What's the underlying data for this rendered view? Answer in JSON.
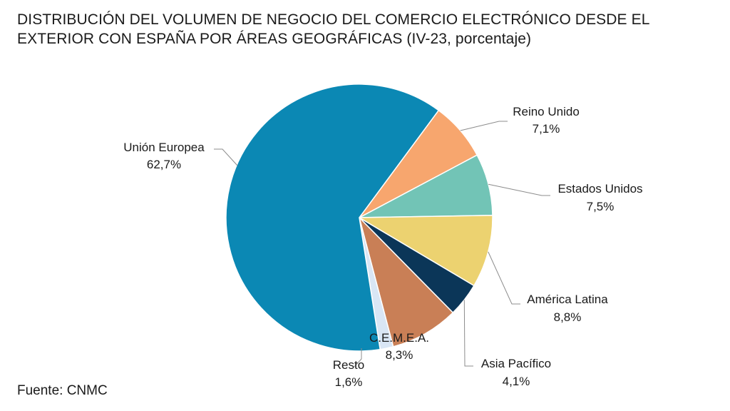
{
  "title_line1": "DISTRIBUCIÓN DEL VOLUMEN DE NEGOCIO DEL COMERCIO ELECTRÓNICO DESDE EL",
  "title_line2": "EXTERIOR CON ESPAÑA POR ÁREAS GEOGRÁFICAS (IV-23, porcentaje)",
  "source": "Fuente: CNMC",
  "chart_data": {
    "type": "pie",
    "title": "DISTRIBUCIÓN DEL VOLUMEN DE NEGOCIO DEL COMERCIO ELECTRÓNICO DESDE EL EXTERIOR CON ESPAÑA POR ÁREAS GEOGRÁFICAS (IV-23, porcentaje)",
    "legend": "none",
    "slices": [
      {
        "name": "Reino Unido",
        "value": 7.1,
        "label": "7,1%",
        "color": "#f7a66e"
      },
      {
        "name": "Estados Unidos",
        "value": 7.5,
        "label": "7,5%",
        "color": "#72c4b6"
      },
      {
        "name": "América Latina",
        "value": 8.8,
        "label": "8,8%",
        "color": "#ecd270"
      },
      {
        "name": "Asia Pacífico",
        "value": 4.1,
        "label": "4,1%",
        "color": "#0b3658"
      },
      {
        "name": "C.E.M.E.A.",
        "value": 8.3,
        "label": "8,3%",
        "color": "#c97f56"
      },
      {
        "name": "Resto",
        "value": 1.6,
        "label": "1,6%",
        "color": "#d9e6f5"
      },
      {
        "name": "Unión Europea",
        "value": 62.7,
        "label": "62,7%",
        "color": "#0b88b4"
      }
    ]
  }
}
